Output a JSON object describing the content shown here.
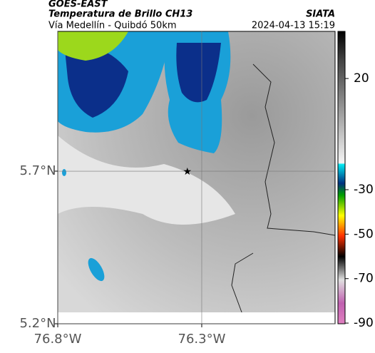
{
  "header": {
    "product": "GOES-EAST",
    "title": "Temperatura de Brillo CH13",
    "subtitle": "Vía Medellín - Quibdó 50km",
    "source": "SIATA",
    "datetime": "2024-04-13 15:19"
  },
  "map": {
    "xlim": [
      -76.8,
      -75.837
    ],
    "ylim": [
      5.2,
      6.158
    ],
    "xticks": [
      {
        "value": -76.8,
        "label": "76.8°W"
      },
      {
        "value": -76.3,
        "label": "76.3°W"
      }
    ],
    "yticks": [
      {
        "value": 5.7,
        "label": "5.7°N"
      },
      {
        "value": 5.2,
        "label": "5.2°N"
      }
    ],
    "grid": true,
    "marker": {
      "lon": -76.35,
      "lat": 5.7
    }
  },
  "colorbar": {
    "clim": [
      -90.3,
      41.2
    ],
    "ticks": [
      20,
      -30,
      -50,
      -70,
      -90
    ]
  }
}
